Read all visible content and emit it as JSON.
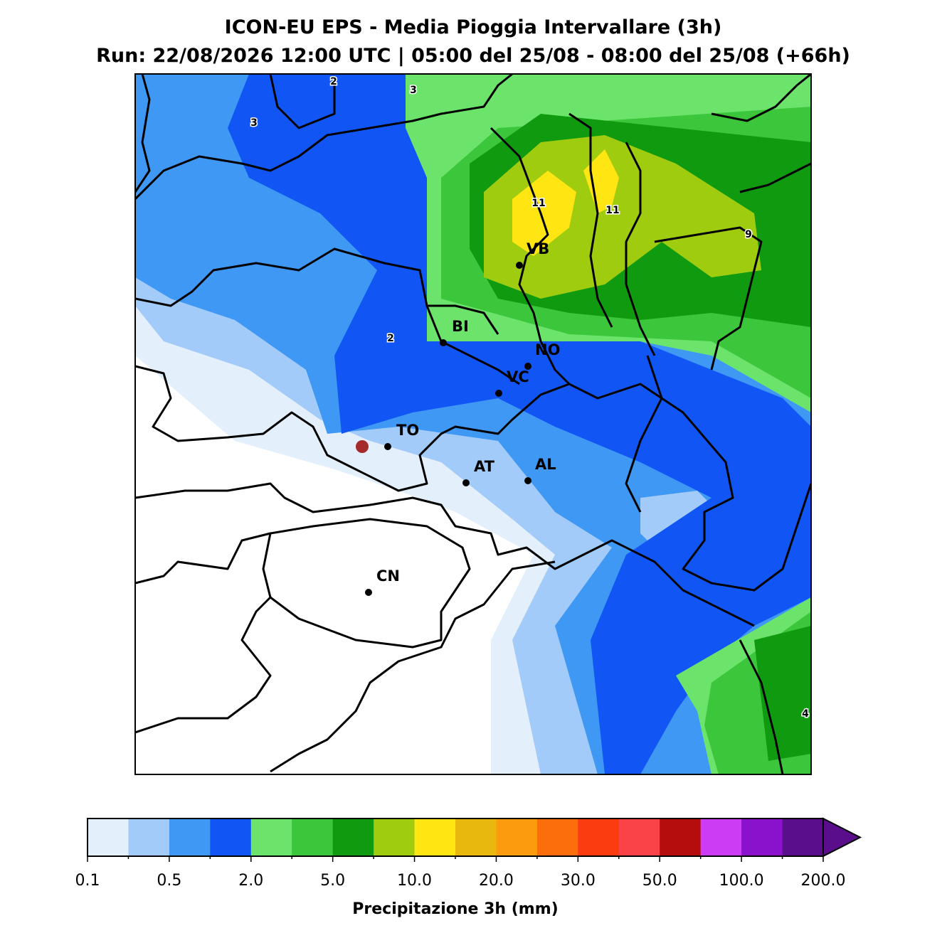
{
  "header": {
    "title": "ICON-EU EPS - Media Pioggia Intervallare (3h)",
    "subtitle": "Run: 22/08/2026 12:00 UTC | 05:00 del 25/08 - 08:00 del 25/08 (+66h)"
  },
  "map": {
    "cities": [
      "VB",
      "BI",
      "NO",
      "VC",
      "TO",
      "AT",
      "AL",
      "CN"
    ],
    "contour_labels": [
      "2",
      "3",
      "3",
      "11",
      "11",
      "9",
      "2",
      "4"
    ]
  },
  "colorbar": {
    "label": "Precipitazione 3h (mm)",
    "colors": [
      "#e4effc",
      "#a3cbfa",
      "#3f98f4",
      "#1155f5",
      "#6ce46c",
      "#3cc63c",
      "#109a10",
      "#a0cc10",
      "#ffe512",
      "#e8b80f",
      "#fd9b0f",
      "#fc6d0c",
      "#fb3b10",
      "#f94348",
      "#b50d0d",
      "#cc3cf5",
      "#8a12cc",
      "#5a0e8c"
    ],
    "tick_labels": [
      "0.1",
      "0.5",
      "2.0",
      "5.0",
      "10.0",
      "20.0",
      "30.0",
      "50.0",
      "100.0",
      "200.0"
    ],
    "extend": "max"
  }
}
